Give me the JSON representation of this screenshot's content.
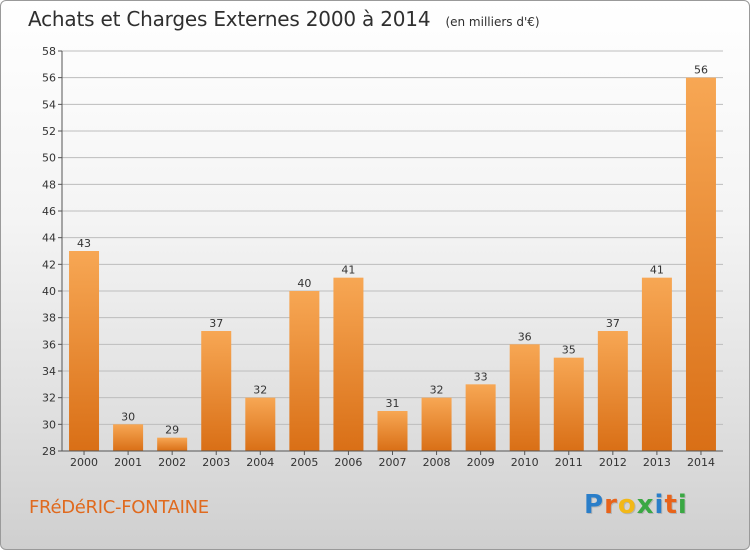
{
  "header": {
    "title": "Achats et Charges Externes 2000 à 2014",
    "unit": "(en milliers d'€)"
  },
  "footer": {
    "city": "FRéDéRIC-FONTAINE",
    "logo": [
      "P",
      "r",
      "o",
      "x",
      "i",
      "t",
      "i"
    ],
    "logo_colors": [
      "#2a7ec9",
      "#e8631a",
      "#f2b817",
      "#3aa843",
      "#2a7ec9",
      "#e8631a",
      "#3aa843"
    ]
  },
  "colors": {
    "bar_light": "#f7a754",
    "bar_dark": "#d96f16",
    "grid": "#bdbdbd",
    "axis": "#555555"
  },
  "chart_data": {
    "type": "bar",
    "title": "Achats et Charges Externes 2000 à 2014",
    "subtitle": "(en milliers d'€)",
    "categories": [
      "2000",
      "2001",
      "2002",
      "2003",
      "2004",
      "2005",
      "2006",
      "2007",
      "2008",
      "2009",
      "2010",
      "2011",
      "2012",
      "2013",
      "2014"
    ],
    "values": [
      43,
      30,
      29,
      37,
      32,
      40,
      41,
      31,
      32,
      33,
      36,
      35,
      37,
      41,
      56
    ],
    "ylim": [
      28,
      58
    ],
    "yticks": [
      28,
      30,
      32,
      34,
      36,
      38,
      40,
      42,
      44,
      46,
      48,
      50,
      52,
      54,
      56,
      58
    ],
    "grid": true,
    "xlabel": "",
    "ylabel": ""
  }
}
